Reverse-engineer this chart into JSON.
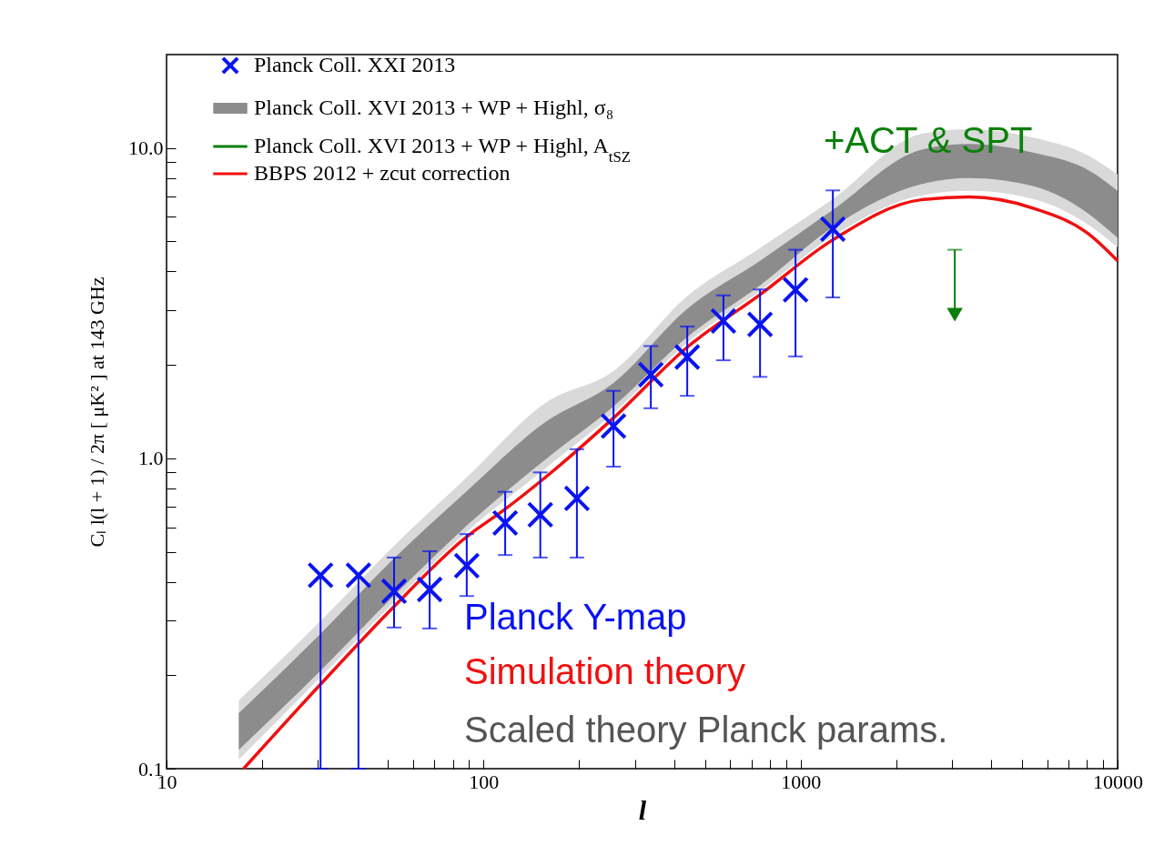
{
  "chart_data": {
    "type": "scatter",
    "xlabel": "l",
    "ylabel": "Cₗ l(l + 1) / 2π [ μK² ] at 143 GHz",
    "log": "xy",
    "grid": false,
    "legend": "top left",
    "xlim": [
      10,
      10000
    ],
    "ylim": [
      0.1,
      20
    ],
    "xticks": [
      10,
      {
        "value": 20,
        "label": null
      },
      {
        "value": 30,
        "label": null
      },
      {
        "value": 40,
        "label": null
      },
      {
        "value": 50,
        "label": null
      },
      {
        "value": 60,
        "label": null
      },
      {
        "value": 70,
        "label": null
      },
      {
        "value": 80,
        "label": null
      },
      {
        "value": 90,
        "label": null
      },
      100,
      {
        "value": 200,
        "label": null
      },
      {
        "value": 300,
        "label": null
      },
      {
        "value": 400,
        "label": null
      },
      {
        "value": 500,
        "label": null
      },
      {
        "value": 600,
        "label": null
      },
      {
        "value": 700,
        "label": null
      },
      {
        "value": 800,
        "label": null
      },
      {
        "value": 900,
        "label": null
      },
      1000,
      {
        "value": 2000,
        "label": null
      },
      {
        "value": 3000,
        "label": null
      },
      {
        "value": 4000,
        "label": null
      },
      {
        "value": 5000,
        "label": null
      },
      {
        "value": 6000,
        "label": null
      },
      {
        "value": 7000,
        "label": null
      },
      {
        "value": 8000,
        "label": null
      },
      {
        "value": 9000,
        "label": null
      },
      10000
    ],
    "yticks": [
      0.1,
      {
        "value": 0.2,
        "label": null
      },
      {
        "value": 0.3,
        "label": null
      },
      {
        "value": 0.4,
        "label": null
      },
      {
        "value": 0.5,
        "label": null
      },
      {
        "value": 0.6,
        "label": null
      },
      {
        "value": 0.7,
        "label": null
      },
      {
        "value": 0.8,
        "label": null
      },
      {
        "value": 0.9,
        "label": null
      },
      {
        "value": 1,
        "label": "1.0"
      },
      {
        "value": 2,
        "label": null
      },
      {
        "value": 3,
        "label": null
      },
      {
        "value": 4,
        "label": null
      },
      {
        "value": 5,
        "label": null
      },
      {
        "value": 6,
        "label": null
      },
      {
        "value": 7,
        "label": null
      },
      {
        "value": 8,
        "label": null
      },
      {
        "value": 9,
        "label": null
      },
      {
        "value": 10,
        "label": "10.0"
      }
    ],
    "annotations": [
      "+ACT & SPT",
      "Planck Y-map",
      "Simulation theory",
      "Scaled theory Planck params."
    ],
    "series": [
      {
        "name": "Planck Coll. XXI 2013",
        "color": "#0a14f0",
        "marker": "cross",
        "x": [
          30.6,
          40.3,
          52.2,
          67.6,
          88.5,
          117,
          151,
          197,
          257,
          337,
          439,
          571,
          745,
          964,
          1264
        ],
        "values": [
          0.42,
          0.42,
          0.373,
          0.378,
          0.451,
          0.619,
          0.658,
          0.743,
          1.27,
          1.86,
          2.12,
          2.77,
          2.7,
          3.49,
          5.48
        ],
        "errors": [
          [
            0.1,
            0.42
          ],
          [
            0.1,
            0.42
          ],
          [
            0.285,
            0.479
          ],
          [
            0.283,
            0.502
          ],
          [
            0.36,
            0.57
          ],
          [
            0.488,
            0.78
          ],
          [
            0.479,
            0.901
          ],
          [
            0.479,
            1.07
          ],
          [
            0.94,
            1.65
          ],
          [
            1.45,
            2.3
          ],
          [
            1.59,
            2.66
          ],
          [
            2.07,
            3.35
          ],
          [
            1.83,
            3.5
          ],
          [
            2.13,
            4.7
          ],
          [
            3.3,
            7.3
          ]
        ]
      },
      {
        "type": "line",
        "color": "#d9d9d9",
        "x": [
          16.9,
          30.6,
          52.2,
          88.5,
          157,
          257,
          439,
          745,
          1264,
          2399,
          3406,
          5409,
          8150,
          10000
        ],
        "values": [
          null,
          null,
          null,
          null,
          null,
          null,
          null,
          null,
          null,
          null,
          null,
          null,
          null,
          null
        ],
        "lower": [
          0.107,
          0.197,
          0.344,
          0.579,
          0.929,
          1.4,
          2.36,
          3.46,
          5.2,
          7.04,
          7.28,
          6.85,
          5.63,
          4.79
        ],
        "upper": [
          0.166,
          0.299,
          0.523,
          0.868,
          1.51,
          1.91,
          3.33,
          4.76,
          6.85,
          11.1,
          11.5,
          10.8,
          9.41,
          8.22
        ]
      },
      {
        "type": "line",
        "name": "Planck Coll. XVI 2013 + WP + Highl, σ₈",
        "color": "#8c8c8c",
        "x": [
          16.9,
          30.6,
          52.2,
          88.5,
          157,
          257,
          439,
          745,
          1264,
          2399,
          3406,
          5409,
          8150,
          10000
        ],
        "values": [
          null,
          null,
          null,
          null,
          null,
          null,
          null,
          null,
          null,
          null,
          null,
          null,
          null,
          null
        ],
        "lower": [
          0.115,
          0.207,
          0.361,
          0.607,
          0.993,
          1.47,
          2.46,
          3.61,
          5.56,
          7.64,
          8.0,
          7.54,
          6.11,
          5.13
        ],
        "upper": [
          0.151,
          0.272,
          0.476,
          0.784,
          1.31,
          1.75,
          3.03,
          4.33,
          6.32,
          9.87,
          10.3,
          9.67,
          8.45,
          7.28
        ]
      },
      {
        "type": "line",
        "name": "Planck Coll. XVI 2013 + WP + Highl, A$_{tSZ}$",
        "color": "#0a800a"
      },
      {
        "type": "line",
        "name": "BBPS 2012 + zcut correction",
        "color": "#f01010",
        "x": [
          17.5,
          30.6,
          52.2,
          88.5,
          117,
          157,
          257,
          439,
          745,
          1264,
          2399,
          3406,
          5409,
          8150,
          10000
        ],
        "values": [
          0.1,
          0.187,
          0.333,
          0.559,
          0.686,
          0.87,
          1.35,
          2.28,
          3.37,
          5.06,
          6.81,
          6.95,
          6.4,
          5.26,
          4.33
        ]
      },
      {
        "color": "#0a800a",
        "marker": "triangle",
        "x": [
          3065
        ],
        "values": [
          2.9
        ],
        "errors": [
          [
            2.9,
            4.7
          ]
        ]
      }
    ]
  }
}
